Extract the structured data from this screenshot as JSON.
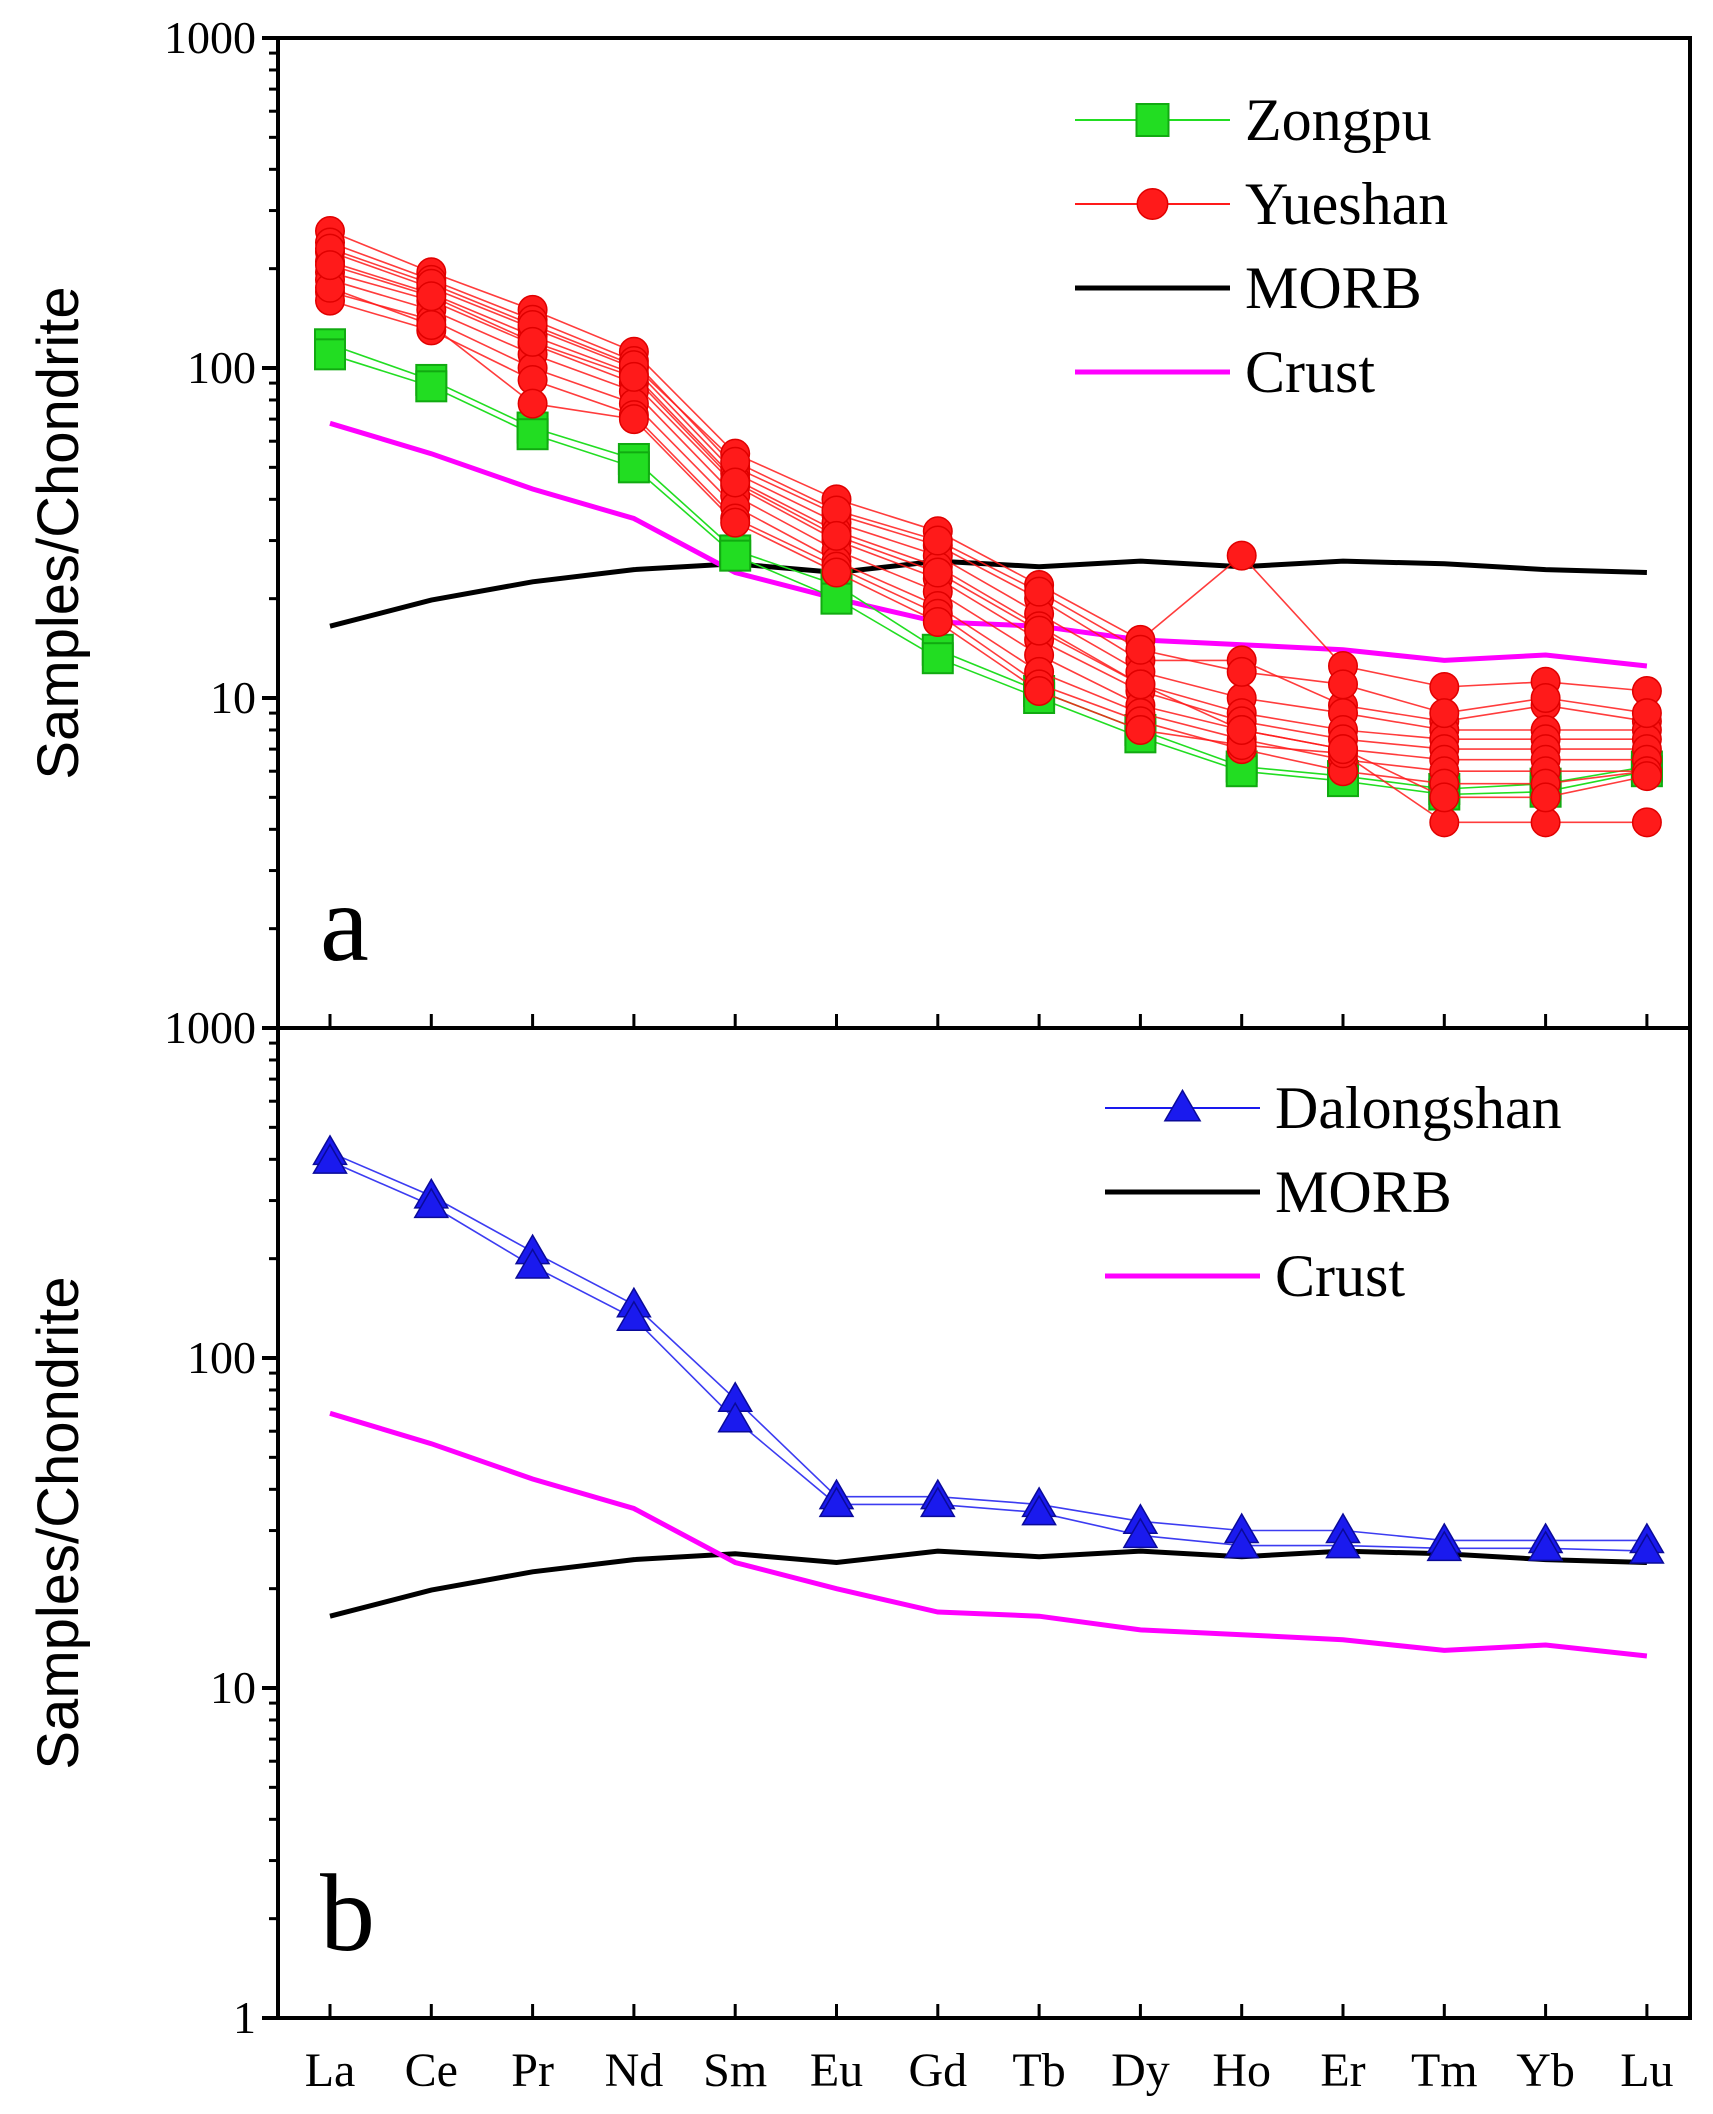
{
  "chart_data": [
    {
      "panel": "a",
      "type": "line",
      "ylabel": "Samples/Chondrite",
      "yscale": "log",
      "ylim": [
        1,
        1000
      ],
      "ytick_labels": [
        "1000",
        "100",
        "10"
      ],
      "categories": [
        "La",
        "Ce",
        "Pr",
        "Nd",
        "Sm",
        "Eu",
        "Gd",
        "Tb",
        "Dy",
        "Ho",
        "Er",
        "Tm",
        "Yb",
        "Lu"
      ],
      "legend": [
        {
          "label": "Zongpu",
          "color": "#22dd22",
          "marker": "square"
        },
        {
          "label": "Yueshan",
          "color": "#ff1a1a",
          "marker": "circle"
        },
        {
          "label": "MORB",
          "color": "#000000",
          "marker": "none"
        },
        {
          "label": "Crust",
          "color": "#ff00ff",
          "marker": "none"
        }
      ],
      "series": [
        {
          "name": "MORB",
          "color": "#000000",
          "values": [
            16.5,
            19.8,
            22.5,
            24.5,
            25.5,
            24,
            26,
            25,
            26,
            25,
            26,
            25.5,
            24.5,
            24
          ]
        },
        {
          "name": "Crust",
          "color": "#ff00ff",
          "values": [
            68,
            55,
            43,
            35,
            24,
            20,
            17,
            16.5,
            15,
            14.5,
            14,
            13,
            13.5,
            12.5
          ]
        },
        {
          "name": "Zongpu",
          "color": "#22dd22",
          "marker": "square",
          "samples": [
            [
              118,
              92,
              66,
              53,
              28,
              22,
              14,
              10.5,
              8,
              6.2,
              5.8,
              5.3,
              5.5,
              6.2
            ],
            [
              110,
              88,
              63,
              50,
              27,
              20,
              13.2,
              10,
              7.6,
              6,
              5.6,
              5.1,
              5.2,
              6
            ]
          ]
        },
        {
          "name": "Yueshan",
          "color": "#ff1a1a",
          "marker": "circle",
          "samples": [
            [
              260,
              195,
              150,
              112,
              55,
              40,
              32,
              22,
              15,
              27,
              12.5,
              10.8,
              11.2,
              10.5
            ],
            [
              240,
              185,
              140,
              105,
              50,
              36,
              29,
              20,
              13,
              13,
              9.5,
              8.5,
              9.5,
              8.5
            ],
            [
              225,
              175,
              132,
              100,
              48,
              34,
              27,
              18,
              12,
              10,
              9,
              8,
              8,
              8
            ],
            [
              210,
              168,
              125,
              96,
              46,
              32,
              25,
              16.5,
              11,
              9,
              8,
              7.5,
              7.5,
              7.5
            ],
            [
              195,
              160,
              118,
              90,
              44,
              30,
              23,
              15,
              10.5,
              8.5,
              7.5,
              7,
              7,
              7
            ],
            [
              185,
              150,
              110,
              85,
              41,
              28,
              21,
              13.5,
              9.5,
              8,
              7,
              6.5,
              6.5,
              6.5
            ],
            [
              170,
              140,
              100,
              78,
              38,
              26,
              19,
              12,
              9,
              7.5,
              6.5,
              6,
              6,
              6
            ],
            [
              160,
              130,
              92,
              72,
              35,
              25,
              18,
              11,
              8.5,
              7,
              6,
              5.5,
              5.5,
              6
            ],
            [
              175,
              135,
              78,
              70,
              34,
              24,
              17,
              10.5,
              8,
              7.2,
              6.8,
              4.2,
              4.2,
              4.2
            ],
            [
              230,
              180,
              135,
              102,
              52,
              37,
              30,
              21,
              14,
              12,
              11,
              9,
              10,
              9
            ],
            [
              205,
              165,
              120,
              94,
              45,
              31,
              24,
              16,
              11,
              8,
              7,
              5,
              5,
              5.8
            ]
          ]
        }
      ],
      "panel_label": "a"
    },
    {
      "panel": "b",
      "type": "line",
      "ylabel": "Samples/Chondrite",
      "yscale": "log",
      "ylim": [
        1,
        1000
      ],
      "ytick_labels": [
        "1000",
        "100",
        "10",
        "1"
      ],
      "categories": [
        "La",
        "Ce",
        "Pr",
        "Nd",
        "Sm",
        "Eu",
        "Gd",
        "Tb",
        "Dy",
        "Ho",
        "Er",
        "Tm",
        "Yb",
        "Lu"
      ],
      "xtick_labels": [
        "La",
        "Ce",
        "Pr",
        "Nd",
        "Sm",
        "Eu",
        "Gd",
        "Tb",
        "Dy",
        "Ho",
        "Er",
        "Tm",
        "Yb",
        "Lu"
      ],
      "legend": [
        {
          "label": "Dalongshan",
          "color": "#1a1aee",
          "marker": "triangle"
        },
        {
          "label": "MORB",
          "color": "#000000",
          "marker": "none"
        },
        {
          "label": "Crust",
          "color": "#ff00ff",
          "marker": "none"
        }
      ],
      "series": [
        {
          "name": "MORB",
          "color": "#000000",
          "values": [
            16.5,
            19.8,
            22.5,
            24.5,
            25.5,
            24,
            26,
            25,
            26,
            25,
            26,
            25.5,
            24.5,
            24
          ]
        },
        {
          "name": "Crust",
          "color": "#ff00ff",
          "values": [
            68,
            55,
            43,
            35,
            24,
            20,
            17,
            16.5,
            15,
            14.5,
            14,
            13,
            13.5,
            12.5
          ]
        },
        {
          "name": "Dalongshan",
          "color": "#1a1aee",
          "marker": "triangle",
          "samples": [
            [
              420,
              310,
              210,
              145,
              75,
              38,
              38,
              36,
              32,
              30,
              30,
              28,
              28,
              28
            ],
            [
              395,
              290,
              190,
              132,
              65,
              36,
              36,
              34,
              29,
              27,
              27,
              26.5,
              26.5,
              26
            ]
          ]
        }
      ],
      "panel_label": "b"
    }
  ]
}
